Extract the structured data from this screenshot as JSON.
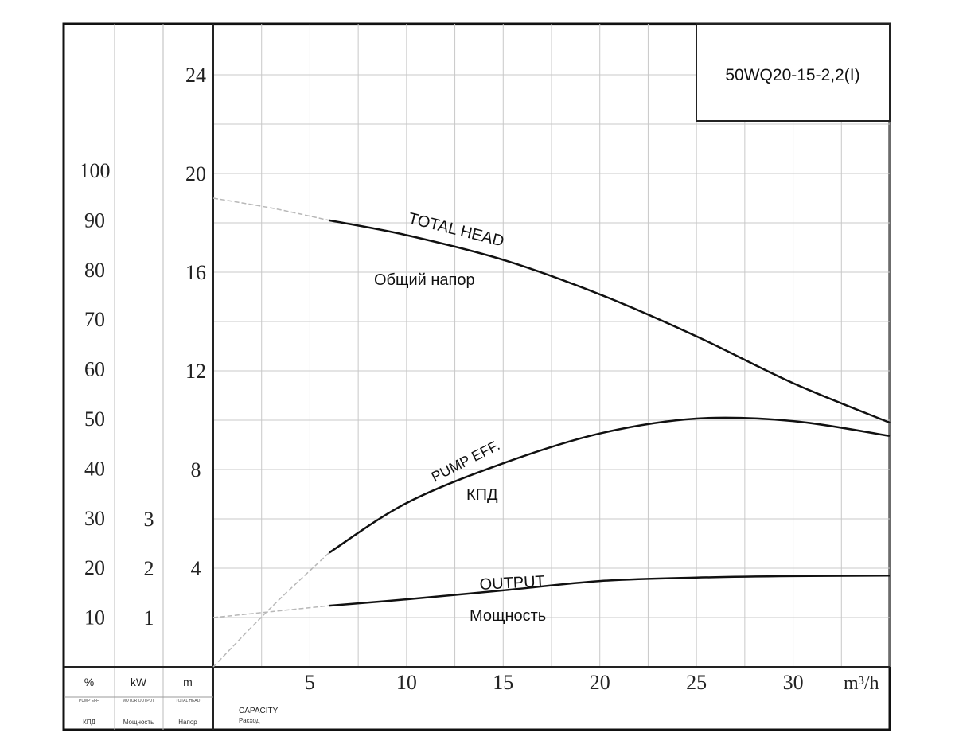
{
  "chart_data": {
    "type": "line",
    "model": "50WQ20-15-2,2(I)",
    "x": {
      "label": "CAPACITY",
      "label_ru": "Расход",
      "unit": "m³/h",
      "range": [
        0,
        35
      ],
      "ticks": [
        "5",
        "10",
        "15",
        "20",
        "25",
        "30"
      ]
    },
    "head_axis": {
      "unit": "m",
      "label": "TOTAL HEAD",
      "label_ru": "Напор",
      "range": [
        0,
        26
      ],
      "ticks": [
        "4",
        "8",
        "12",
        "16",
        "20",
        "24"
      ]
    },
    "power_axis": {
      "unit": "kW",
      "label": "MOTOR OUTPUT",
      "label_ru": "Мощность",
      "ticks": [
        "1",
        "2",
        "3"
      ]
    },
    "eff_axis": {
      "unit": "%",
      "label": "PUMP EFF.",
      "label_ru": "КПД",
      "ticks": [
        "10",
        "20",
        "30",
        "40",
        "50",
        "60",
        "70",
        "80",
        "90",
        "100"
      ]
    },
    "series": [
      {
        "name": "TOTAL HEAD",
        "name_ru": "Общий напор",
        "axis": "head",
        "x": [
          6,
          10,
          15,
          20,
          25,
          30,
          35
        ],
        "y": [
          18.1,
          17.5,
          16.5,
          15.1,
          13.4,
          11.5,
          9.9
        ],
        "extrapolated": {
          "x": [
            0,
            3,
            6
          ],
          "y": [
            19.0,
            18.6,
            18.1
          ]
        }
      },
      {
        "name": "PUMP EFF.",
        "name_ru": "КПД",
        "axis": "eff",
        "x": [
          6,
          10,
          15,
          20,
          25,
          30,
          35
        ],
        "y": [
          23,
          33,
          41,
          47,
          50,
          49.5,
          46.5
        ],
        "extrapolated": {
          "x": [
            0,
            3,
            6
          ],
          "y": [
            0,
            12,
            23
          ]
        }
      },
      {
        "name": "OUTPUT",
        "name_ru": "Мощность",
        "axis": "power",
        "x": [
          6,
          10,
          15,
          20,
          25,
          30,
          35
        ],
        "y": [
          1.24,
          1.37,
          1.55,
          1.74,
          1.81,
          1.84,
          1.85
        ],
        "extrapolated": {
          "x": [
            0,
            3,
            6
          ],
          "y": [
            1.0,
            1.12,
            1.24
          ]
        }
      }
    ],
    "grid": true
  }
}
